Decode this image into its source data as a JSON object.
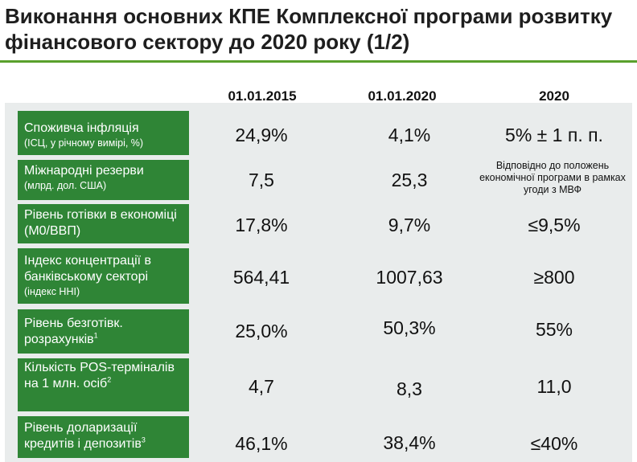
{
  "title": "Виконання основних КПЕ Комплексної програми розвитку фінансового сектору до 2020 року (1/2)",
  "columns": [
    "01.01.2015",
    "01.01.2020",
    "2020"
  ],
  "rows": [
    {
      "label": "Споживча інфляція",
      "sublabel": "(ІСЦ, у річному вимірі, %)",
      "v2015": "24,9%",
      "v2020": "4,1%",
      "target": "5% ± 1 п. п."
    },
    {
      "label": "Міжнародні резерви",
      "sublabel": "(млрд. дол. США)",
      "v2015": "7,5",
      "v2020": "25,3",
      "target": "Відповідно до положень економічної програми в рамках угоди з МВФ"
    },
    {
      "label": "Рівень готівки в економіці (М0/ВВП)",
      "v2015": "17,8%",
      "v2020": "9,7%",
      "target": "≤9,5%"
    },
    {
      "label": "Індекс концентрації в банківському секторі",
      "sublabel": "(індекс ННІ)",
      "v2015": "564,41",
      "v2020": "1007,63",
      "target": "≥800"
    },
    {
      "label": "Рівень безготівк. розрахунків",
      "footnote": "1",
      "v2015": "25,0%",
      "v2020": "50,3%",
      "target": "55%"
    },
    {
      "label": "Кількість POS-терміналів на 1 млн. осіб",
      "footnote": "2",
      "v2015": "4,7",
      "v2020": "8,3",
      "target": "11,0"
    },
    {
      "label": "Рівень доларизації кредитів і депозитів",
      "footnote": "3",
      "v2015": "46,1%",
      "v2020": "38,4%",
      "target": "≤40%"
    }
  ]
}
